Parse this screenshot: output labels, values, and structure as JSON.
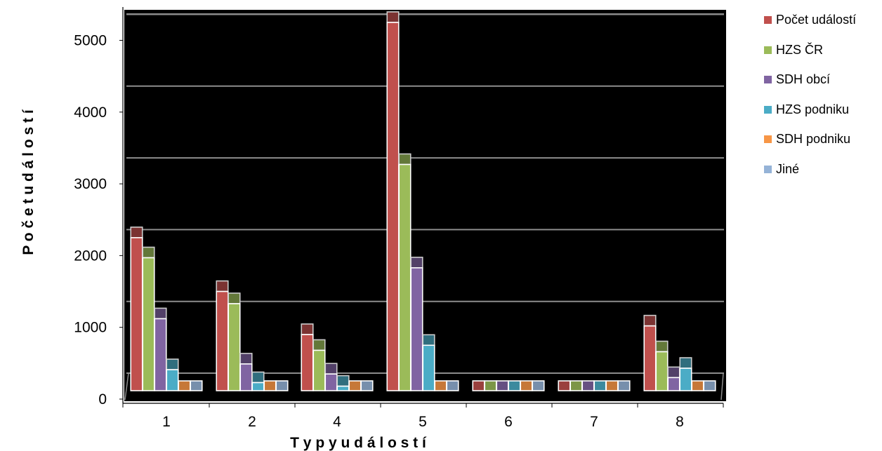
{
  "chart_data": {
    "type": "bar",
    "title": "",
    "xlabel": "T y p y   u d á l o s t í",
    "ylabel": "P o č e t   u d á l o s t í",
    "categories": [
      "1",
      "2",
      "4",
      "5",
      "6",
      "7",
      "8"
    ],
    "ylim": [
      0,
      5400
    ],
    "yticks": [
      "0",
      "1000",
      "2000",
      "3000",
      "4000",
      "5000"
    ],
    "grid": true,
    "legend_position": "right",
    "series": [
      {
        "name": "Počet událostí",
        "color": "#c0504d",
        "values": [
          2250,
          1500,
          900,
          5250,
          0,
          0,
          1020
        ]
      },
      {
        "name": "HZS ČR",
        "color": "#9bbb59",
        "values": [
          1970,
          1330,
          680,
          3270,
          0,
          0,
          660
        ]
      },
      {
        "name": "SDH obcí",
        "color": "#8064a2",
        "values": [
          1120,
          490,
          350,
          1830,
          0,
          0,
          300
        ]
      },
      {
        "name": "HZS podniku",
        "color": "#4bacc6",
        "values": [
          410,
          230,
          180,
          750,
          0,
          0,
          430
        ]
      },
      {
        "name": "SDH podniku",
        "color": "#f79646",
        "values": [
          0,
          0,
          0,
          0,
          0,
          0,
          0
        ]
      },
      {
        "name": "Jiné",
        "color": "#95b3d7",
        "values": [
          0,
          0,
          0,
          0,
          0,
          0,
          0
        ]
      }
    ]
  }
}
